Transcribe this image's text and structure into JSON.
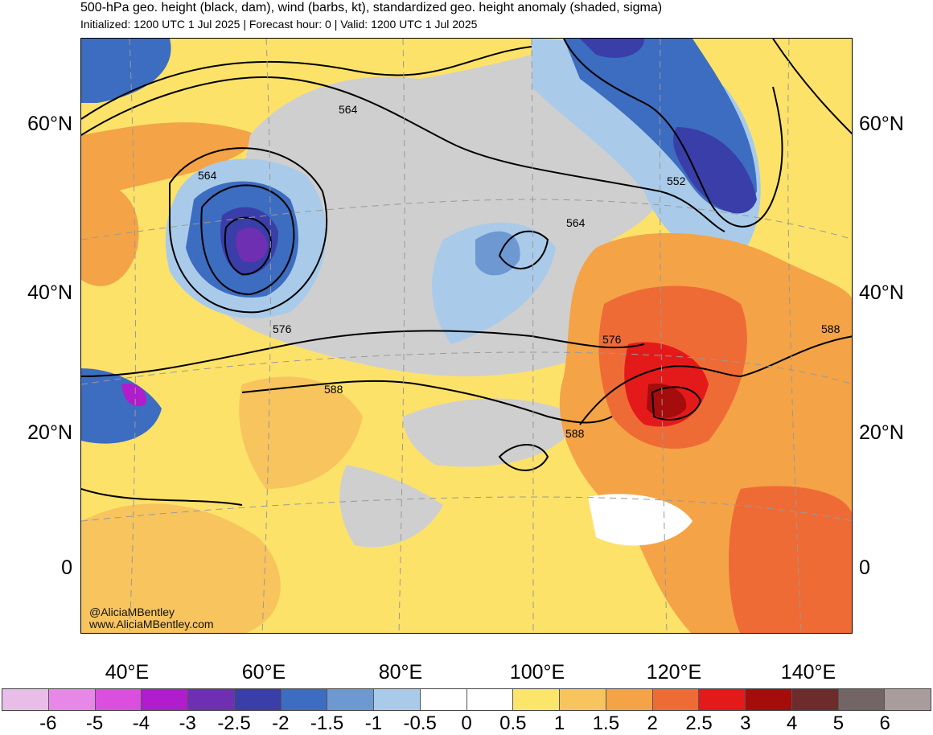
{
  "title": "500-hPa geo. height (black, dam), wind (barbs, kt), standardized geo. height anomaly (shaded, sigma)",
  "subtitle": "Initialized: 1200 UTC 1 Jul 2025 | Forecast hour: 0 | Valid: 1200 UTC 1 Jul 2025",
  "credit": {
    "handle": "@AliciaMBentley",
    "site": "www.AliciaMBentley.com"
  },
  "lat_labels": [
    "60°N",
    "40°N",
    "20°N",
    "0"
  ],
  "lon_labels": [
    "40°E",
    "60°E",
    "80°E",
    "100°E",
    "120°E",
    "140°E"
  ],
  "contour_labels": [
    "564",
    "564",
    "564",
    "552",
    "576",
    "576",
    "588",
    "588",
    "588"
  ],
  "colorbar": {
    "colors": [
      "#e8bde8",
      "#e787e8",
      "#da4fdd",
      "#b01dcc",
      "#6e2fb2",
      "#393ea8",
      "#3d6dc0",
      "#6d98d2",
      "#a9cbe9",
      "#ffffff",
      "#ffffff",
      "#fbe56b",
      "#f7c45e",
      "#f4a347",
      "#ef6b36",
      "#e41a1a",
      "#a50c0c",
      "#6e2b2b",
      "#736565",
      "#a89c9c"
    ],
    "labels": [
      "-6",
      "-5",
      "-4",
      "-3",
      "-2.5",
      "-2",
      "-1.5",
      "-1",
      "-0.5",
      "0",
      "0.5",
      "1",
      "1.5",
      "2",
      "2.5",
      "3",
      "4",
      "5",
      "6"
    ]
  },
  "legend_colors": {
    "neutral_gray": "#cfcfcf",
    "yellow": "#fbe56b",
    "light_orange": "#f7c45e",
    "orange": "#f4a347",
    "red_orange": "#ef6b36",
    "red": "#e41a1a",
    "dark_red": "#a50c0c",
    "pale_blue": "#a9cbe9",
    "mid_blue": "#6d98d2",
    "blue": "#3d6dc0",
    "dark_blue": "#393ea8",
    "purple": "#6e2fb2"
  }
}
